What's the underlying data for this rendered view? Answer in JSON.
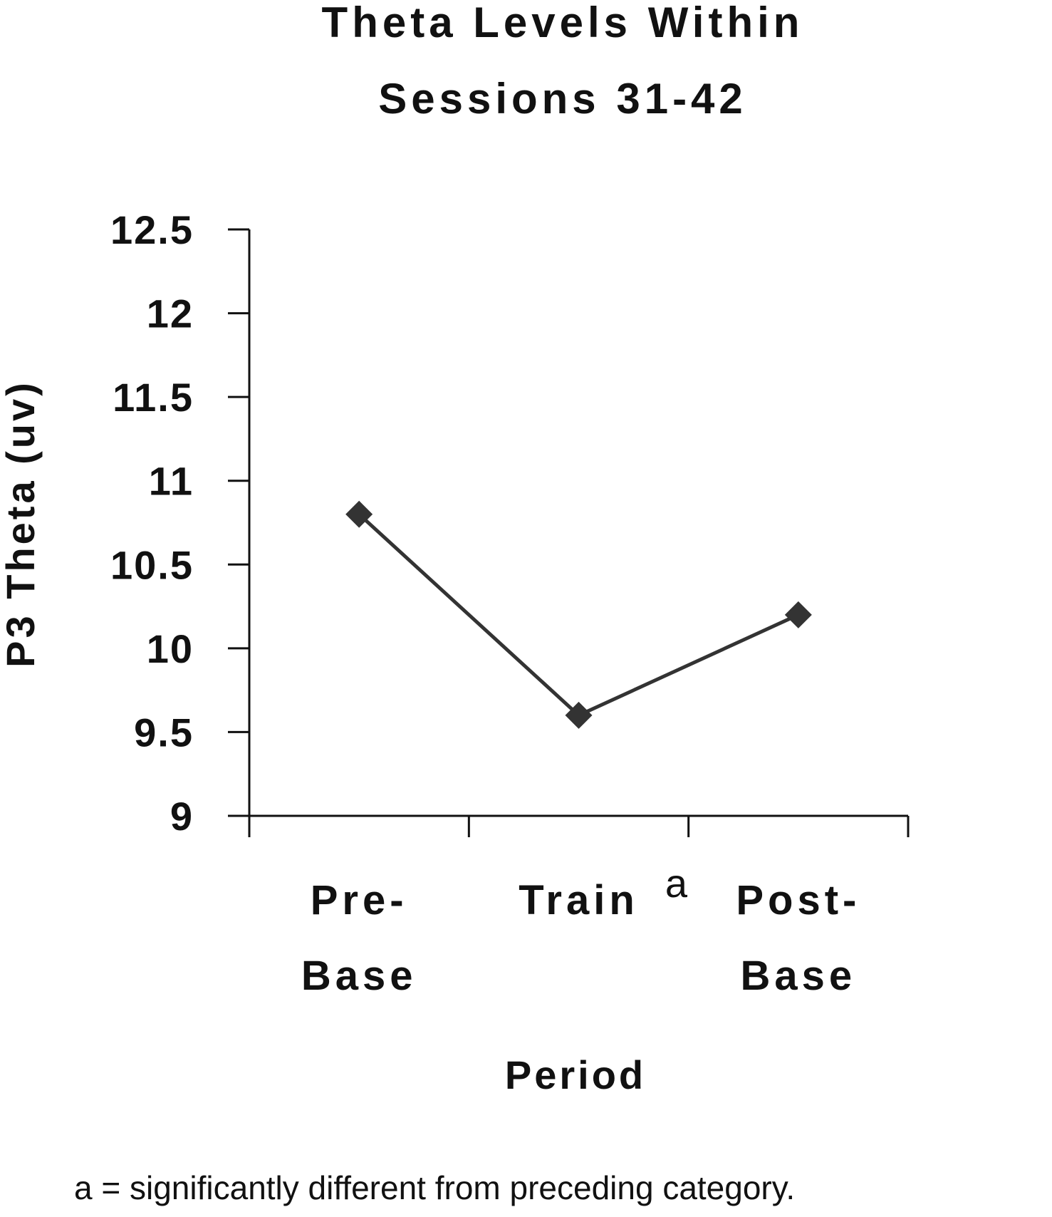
{
  "chart_data": {
    "type": "line",
    "title_lines": [
      "Theta Levels Within",
      "Sessions 31-42"
    ],
    "xlabel": "Period",
    "ylabel": "P3 Theta (uv)",
    "categories": [
      {
        "lines": [
          "Pre-",
          "Base"
        ]
      },
      {
        "lines": [
          "Train"
        ],
        "marker": "a"
      },
      {
        "lines": [
          "Post-",
          "Base"
        ]
      }
    ],
    "series": [
      {
        "values": [
          10.8,
          9.6,
          10.2
        ]
      }
    ],
    "ylim": [
      9,
      12.5
    ],
    "yticks": [
      "9",
      "9.5",
      "10",
      "10.5",
      "11",
      "11.5",
      "12",
      "12.5"
    ],
    "grid": false,
    "legend": "none",
    "line_color": "#333333",
    "marker_shape": "diamond"
  },
  "footnote": "a = significantly different from preceding category."
}
